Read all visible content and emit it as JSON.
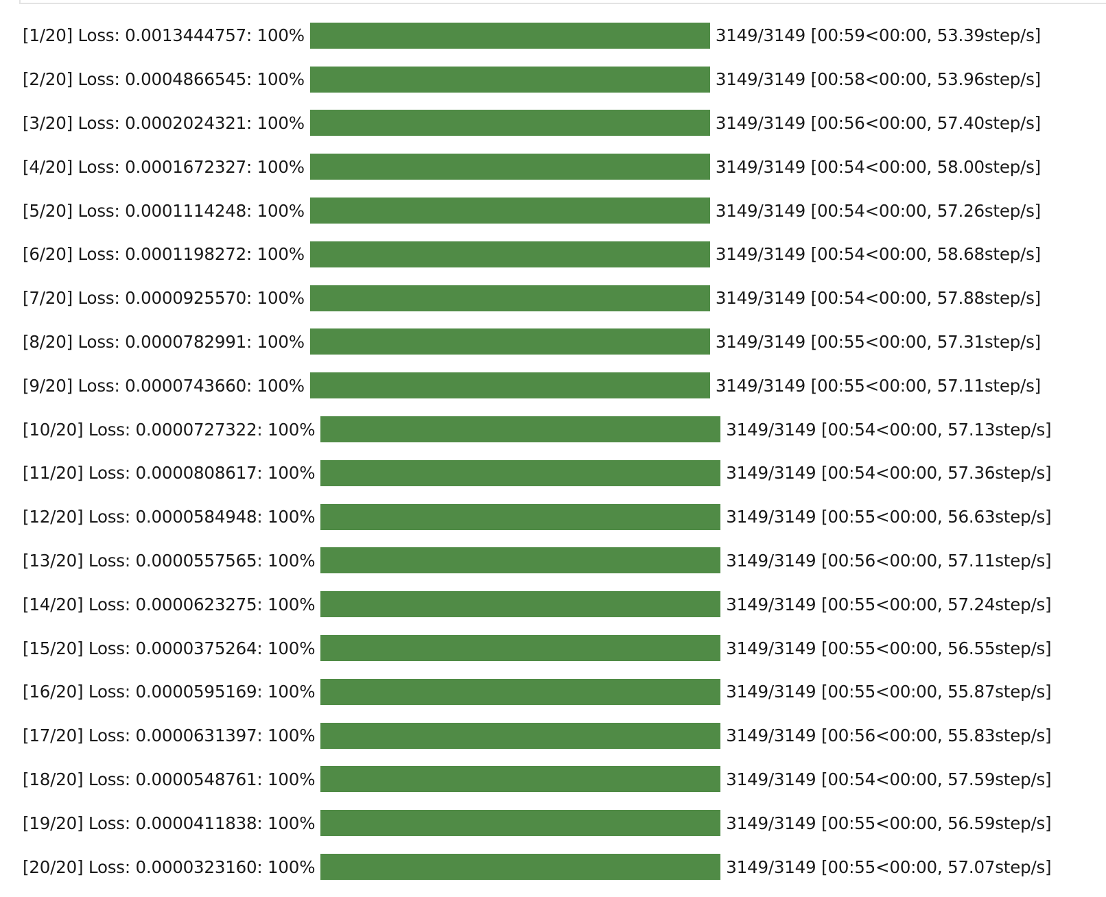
{
  "progress": {
    "bar_color": "#508b46",
    "rows": [
      {
        "epoch": "[1/20]",
        "loss_label": "Loss:",
        "loss": "0.0013444757",
        "percent": "100%",
        "fraction": 1.0,
        "count": "3149/3149",
        "timing": "[00:59<00:00, 53.39step/s]"
      },
      {
        "epoch": "[2/20]",
        "loss_label": "Loss:",
        "loss": "0.0004866545",
        "percent": "100%",
        "fraction": 1.0,
        "count": "3149/3149",
        "timing": "[00:58<00:00, 53.96step/s]"
      },
      {
        "epoch": "[3/20]",
        "loss_label": "Loss:",
        "loss": "0.0002024321",
        "percent": "100%",
        "fraction": 1.0,
        "count": "3149/3149",
        "timing": "[00:56<00:00, 57.40step/s]"
      },
      {
        "epoch": "[4/20]",
        "loss_label": "Loss:",
        "loss": "0.0001672327",
        "percent": "100%",
        "fraction": 1.0,
        "count": "3149/3149",
        "timing": "[00:54<00:00, 58.00step/s]"
      },
      {
        "epoch": "[5/20]",
        "loss_label": "Loss:",
        "loss": "0.0001114248",
        "percent": "100%",
        "fraction": 1.0,
        "count": "3149/3149",
        "timing": "[00:54<00:00, 57.26step/s]"
      },
      {
        "epoch": "[6/20]",
        "loss_label": "Loss:",
        "loss": "0.0001198272",
        "percent": "100%",
        "fraction": 1.0,
        "count": "3149/3149",
        "timing": "[00:54<00:00, 58.68step/s]"
      },
      {
        "epoch": "[7/20]",
        "loss_label": "Loss:",
        "loss": "0.0000925570",
        "percent": "100%",
        "fraction": 1.0,
        "count": "3149/3149",
        "timing": "[00:54<00:00, 57.88step/s]"
      },
      {
        "epoch": "[8/20]",
        "loss_label": "Loss:",
        "loss": "0.0000782991",
        "percent": "100%",
        "fraction": 1.0,
        "count": "3149/3149",
        "timing": "[00:55<00:00, 57.31step/s]"
      },
      {
        "epoch": "[9/20]",
        "loss_label": "Loss:",
        "loss": "0.0000743660",
        "percent": "100%",
        "fraction": 1.0,
        "count": "3149/3149",
        "timing": "[00:55<00:00, 57.11step/s]"
      },
      {
        "epoch": "[10/20]",
        "loss_label": "Loss:",
        "loss": "0.0000727322",
        "percent": "100%",
        "fraction": 1.0,
        "count": "3149/3149",
        "timing": "[00:54<00:00, 57.13step/s]"
      },
      {
        "epoch": "[11/20]",
        "loss_label": "Loss:",
        "loss": "0.0000808617",
        "percent": "100%",
        "fraction": 1.0,
        "count": "3149/3149",
        "timing": "[00:54<00:00, 57.36step/s]"
      },
      {
        "epoch": "[12/20]",
        "loss_label": "Loss:",
        "loss": "0.0000584948",
        "percent": "100%",
        "fraction": 1.0,
        "count": "3149/3149",
        "timing": "[00:55<00:00, 56.63step/s]"
      },
      {
        "epoch": "[13/20]",
        "loss_label": "Loss:",
        "loss": "0.0000557565",
        "percent": "100%",
        "fraction": 1.0,
        "count": "3149/3149",
        "timing": "[00:56<00:00, 57.11step/s]"
      },
      {
        "epoch": "[14/20]",
        "loss_label": "Loss:",
        "loss": "0.0000623275",
        "percent": "100%",
        "fraction": 1.0,
        "count": "3149/3149",
        "timing": "[00:55<00:00, 57.24step/s]"
      },
      {
        "epoch": "[15/20]",
        "loss_label": "Loss:",
        "loss": "0.0000375264",
        "percent": "100%",
        "fraction": 1.0,
        "count": "3149/3149",
        "timing": "[00:55<00:00, 56.55step/s]"
      },
      {
        "epoch": "[16/20]",
        "loss_label": "Loss:",
        "loss": "0.0000595169",
        "percent": "100%",
        "fraction": 1.0,
        "count": "3149/3149",
        "timing": "[00:55<00:00, 55.87step/s]"
      },
      {
        "epoch": "[17/20]",
        "loss_label": "Loss:",
        "loss": "0.0000631397",
        "percent": "100%",
        "fraction": 1.0,
        "count": "3149/3149",
        "timing": "[00:56<00:00, 55.83step/s]"
      },
      {
        "epoch": "[18/20]",
        "loss_label": "Loss:",
        "loss": "0.0000548761",
        "percent": "100%",
        "fraction": 1.0,
        "count": "3149/3149",
        "timing": "[00:54<00:00, 57.59step/s]"
      },
      {
        "epoch": "[19/20]",
        "loss_label": "Loss:",
        "loss": "0.0000411838",
        "percent": "100%",
        "fraction": 1.0,
        "count": "3149/3149",
        "timing": "[00:55<00:00, 56.59step/s]"
      },
      {
        "epoch": "[20/20]",
        "loss_label": "Loss:",
        "loss": "0.0000323160",
        "percent": "100%",
        "fraction": 1.0,
        "count": "3149/3149",
        "timing": "[00:55<00:00, 57.07step/s]"
      }
    ]
  }
}
